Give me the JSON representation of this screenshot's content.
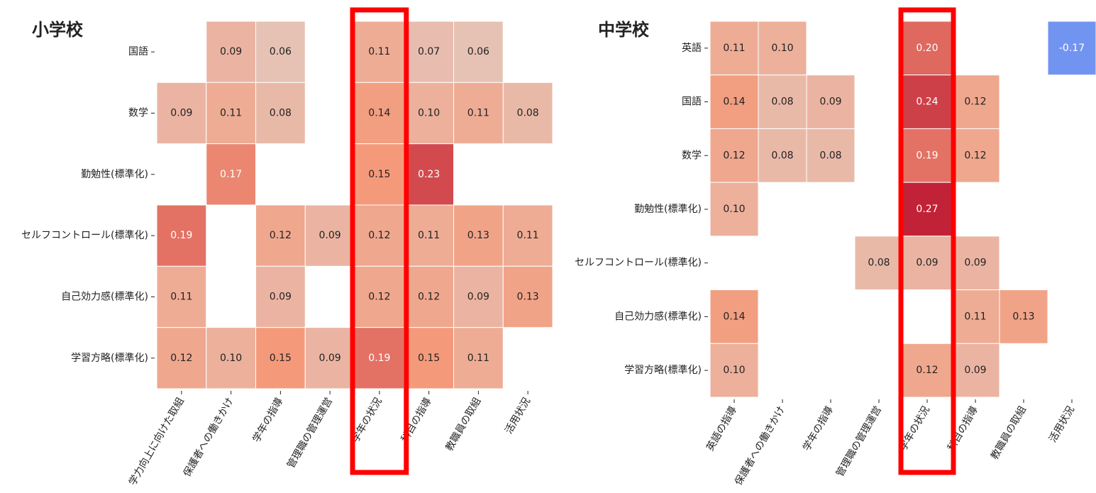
{
  "chart_data": [
    {
      "type": "heatmap",
      "title": "小学校",
      "rows": [
        "国語",
        "数学",
        "勤勉性(標準化)",
        "セルフコントロール(標準化)",
        "自己効力感(標準化)",
        "学習方略(標準化)"
      ],
      "columns": [
        "学力向上に向けた取組",
        "保護者への働きかけ",
        "学年の指導",
        "管理職の管理運営",
        "学年の状況",
        "科目の指導",
        "教職員の取組",
        "活用状況"
      ],
      "values": [
        [
          null,
          0.09,
          0.06,
          null,
          0.11,
          0.07,
          0.06,
          null
        ],
        [
          0.09,
          0.11,
          0.08,
          null,
          0.14,
          0.1,
          0.11,
          0.08
        ],
        [
          null,
          0.17,
          null,
          null,
          0.15,
          0.23,
          null,
          null
        ],
        [
          0.19,
          null,
          0.12,
          0.09,
          0.12,
          0.11,
          0.13,
          0.11
        ],
        [
          0.11,
          null,
          0.09,
          null,
          0.12,
          0.12,
          0.09,
          0.13
        ],
        [
          0.12,
          0.1,
          0.15,
          0.09,
          0.19,
          0.15,
          0.11,
          null
        ]
      ],
      "value_labels": [
        [
          null,
          "0.09",
          "0.06",
          null,
          "0.11",
          "0.07",
          "0.06",
          null
        ],
        [
          "0.09",
          "0.11",
          "0.08",
          null,
          "0.14",
          "0.10",
          "0.11",
          "0.08"
        ],
        [
          null,
          "0.17",
          null,
          null,
          "0.15",
          "0.23",
          null,
          null
        ],
        [
          "0.19",
          null,
          "0.12",
          "0.09",
          "0.12",
          "0.11",
          "0.13",
          "0.11"
        ],
        [
          "0.11",
          null,
          "0.09",
          null,
          "0.12",
          "0.12",
          "0.09",
          "0.13"
        ],
        [
          "0.12",
          "0.10",
          "0.15",
          "0.09",
          "0.19",
          "0.15",
          "0.11",
          null
        ]
      ],
      "vlim": [
        -0.3,
        0.3
      ],
      "colorscale": [
        "#3b4cc0",
        "#7b9ff9",
        "#dddcdc",
        "#f49a7b",
        "#b40426"
      ]
    },
    {
      "type": "heatmap",
      "title": "中学校",
      "rows": [
        "英語",
        "国語",
        "数学",
        "勤勉性(標準化)",
        "セルフコントロール(標準化)",
        "自己効力感(標準化)",
        "学習方略(標準化)"
      ],
      "columns": [
        "英語の指導",
        "保護者への働きかけ",
        "学年の指導",
        "管理職の管理運営",
        "学年の状況",
        "科目の指導",
        "教職員の取組",
        "活用状況"
      ],
      "values": [
        [
          0.11,
          0.1,
          null,
          null,
          0.2,
          null,
          null,
          -0.17
        ],
        [
          0.14,
          0.08,
          0.09,
          null,
          0.24,
          0.12,
          null,
          null
        ],
        [
          0.12,
          0.08,
          0.08,
          null,
          0.19,
          0.12,
          null,
          null
        ],
        [
          0.1,
          null,
          null,
          null,
          0.27,
          null,
          null,
          null
        ],
        [
          null,
          null,
          null,
          0.08,
          0.09,
          0.09,
          null,
          null
        ],
        [
          0.14,
          null,
          null,
          null,
          null,
          0.11,
          0.13,
          null
        ],
        [
          0.1,
          null,
          null,
          null,
          0.12,
          0.09,
          null,
          null
        ]
      ],
      "value_labels": [
        [
          "0.11",
          "0.10",
          null,
          null,
          "0.20",
          null,
          null,
          "-0.17"
        ],
        [
          "0.14",
          "0.08",
          "0.09",
          null,
          "0.24",
          "0.12",
          null,
          null
        ],
        [
          "0.12",
          "0.08",
          "0.08",
          null,
          "0.19",
          "0.12",
          null,
          null
        ],
        [
          "0.10",
          null,
          null,
          null,
          "0.27",
          null,
          null,
          null
        ],
        [
          null,
          null,
          null,
          "0.08",
          "0.09",
          "0.09",
          null,
          null
        ],
        [
          "0.14",
          null,
          null,
          null,
          null,
          "0.11",
          "0.13",
          null
        ],
        [
          "0.10",
          null,
          null,
          null,
          "0.12",
          "0.09",
          null,
          null
        ]
      ],
      "vlim": [
        -0.3,
        0.3
      ],
      "colorscale": [
        "#3b4cc0",
        "#7b9ff9",
        "#dddcdc",
        "#f49a7b",
        "#b40426"
      ]
    }
  ]
}
